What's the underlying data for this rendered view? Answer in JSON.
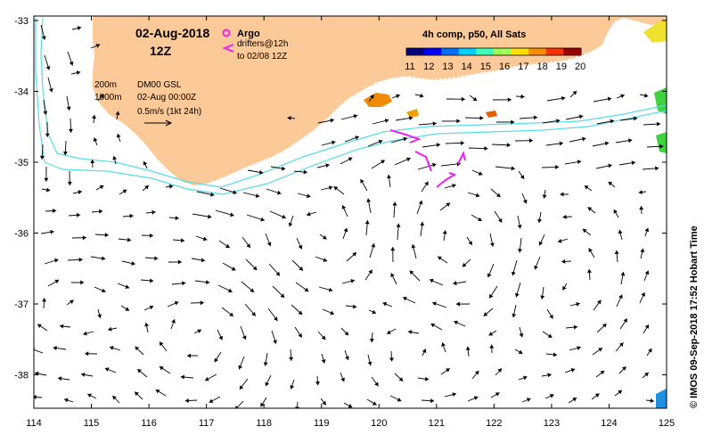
{
  "map": {
    "title_date": "02-Aug-2018",
    "title_time": "12Z",
    "lon_ticks": [
      "114",
      "115",
      "116",
      "117",
      "118",
      "119",
      "120",
      "121",
      "122",
      "123",
      "124",
      "125"
    ],
    "lat_ticks": [
      "-33",
      "-34",
      "-35",
      "-36",
      "-37",
      "-38"
    ],
    "land_color": "#fcc998",
    "current_color": "#000000",
    "isobath_color": "#55dde6",
    "drifter_color": "#ee22ee"
  },
  "legend": {
    "argo_label": "Argo",
    "drifters_label": "drifters@12h",
    "drifters_sub": "to 02/08 12Z",
    "isobath_200": "200m",
    "isobath_1000": "1000m",
    "product": "DM00 GSL",
    "analysis_time": "02-Aug 00:00Z",
    "scale_label": "0.5m/s (1kt 24h)"
  },
  "colorbar": {
    "title": "4h comp, p50, All Sats",
    "ticks": [
      "11",
      "12",
      "13",
      "14",
      "15",
      "16",
      "17",
      "18",
      "19",
      "20"
    ],
    "colors": [
      "#00007f",
      "#0000ff",
      "#0070ff",
      "#00d0ff",
      "#40ffb8",
      "#a0ff58",
      "#ffe000",
      "#ff8a00",
      "#ff3000",
      "#9a0000"
    ]
  },
  "credit": "© IMOS 09-Sep-2018 17:52 Hobart Time"
}
